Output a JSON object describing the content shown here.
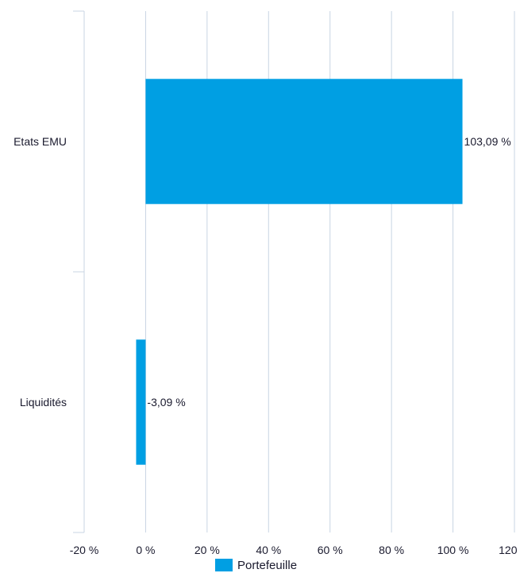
{
  "chart_data": {
    "type": "bar",
    "orientation": "horizontal",
    "categories": [
      "Etats EMU",
      "Liquidités"
    ],
    "series": [
      {
        "name": "Portefeuille",
        "values": [
          103.09,
          -3.09
        ],
        "color": "#009FE3"
      }
    ],
    "data_labels": [
      "103,09 %",
      "-3,09 %"
    ],
    "xlim": [
      -20,
      120
    ],
    "x_ticks": [
      -20,
      0,
      20,
      40,
      60,
      80,
      100,
      120
    ],
    "x_tick_labels": [
      "-20 %",
      "0 %",
      "20 %",
      "40 %",
      "60 %",
      "80 %",
      "100 %",
      "120 %"
    ],
    "grid": true,
    "grid_color": "#c8d4e3",
    "axis_color": "#c8d4e3",
    "legend_position": "bottom-center",
    "title": "",
    "xlabel": "",
    "ylabel": ""
  }
}
